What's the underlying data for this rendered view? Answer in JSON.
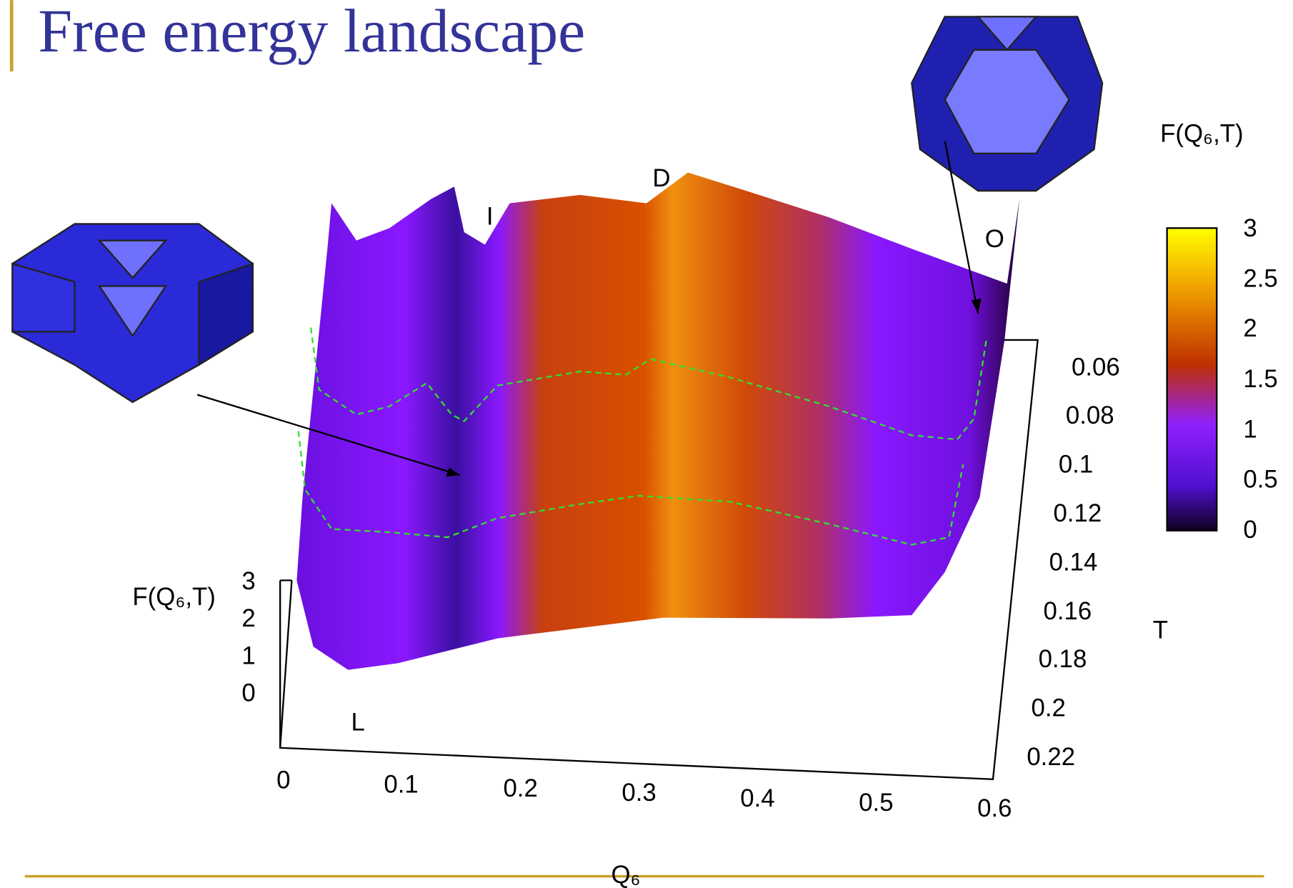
{
  "title": "Free energy landscape",
  "plot": {
    "x_label": "Q₆",
    "x_ticks": [
      0,
      0.1,
      0.2,
      0.3,
      0.4,
      0.5,
      0.6
    ],
    "y_label": "T",
    "y_ticks": [
      0.06,
      0.08,
      0.1,
      0.12,
      0.14,
      0.16,
      0.18,
      0.2,
      0.22
    ],
    "z_label": "F(Q₆,T)",
    "z_ticks": [
      3,
      2,
      1,
      0
    ],
    "colorbar_label": "F(Q₆,T)",
    "colorbar_ticks": [
      3,
      2.5,
      2,
      1.5,
      1,
      0.5,
      0
    ],
    "annotations": [
      "L",
      "I",
      "D",
      "O"
    ]
  }
}
